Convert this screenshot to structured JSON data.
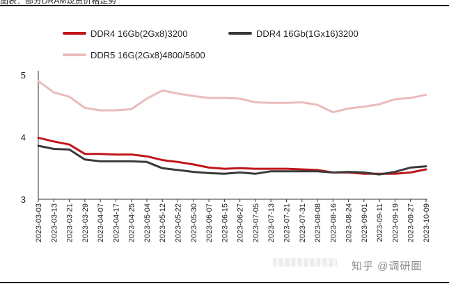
{
  "header": {
    "caption_fragment": "图表：部分DRAM现货价格走势"
  },
  "watermark": "知乎 @调研圈",
  "chart_data": {
    "type": "line",
    "title": "",
    "xlabel": "",
    "ylabel": "",
    "ylim": [
      3,
      5
    ],
    "yticks": [
      3,
      4,
      5
    ],
    "grid": false,
    "legend_position": "top",
    "x_tick_labels": [
      "2023-03-03",
      "2023-03-13",
      "2023-03-21",
      "2023-03-29",
      "2023-04-07",
      "2023-04-17",
      "2023-04-25",
      "2023-05-04",
      "2023-05-12",
      "2023-05-22",
      "2023-05-30",
      "2023-06-07",
      "2023-06-15",
      "2023-06-27",
      "2023-07-05",
      "2023-07-13",
      "2023-07-21",
      "2023-07-31",
      "2023-08-08",
      "2023-08-16",
      "2023-08-24",
      "2023-09-01",
      "2023-09-11",
      "2023-09-19",
      "2023-09-27",
      "2023-10-09"
    ],
    "series": [
      {
        "name": "DDR4 16Gb(2Gx8)3200",
        "color": "#c0161b",
        "values": [
          3.99,
          3.93,
          3.88,
          3.73,
          3.73,
          3.72,
          3.72,
          3.69,
          3.63,
          3.6,
          3.56,
          3.51,
          3.49,
          3.5,
          3.49,
          3.49,
          3.49,
          3.48,
          3.47,
          3.43,
          3.43,
          3.41,
          3.41,
          3.41,
          3.43,
          3.48
        ]
      },
      {
        "name": "DDR4 16Gb(1Gx16)3200",
        "color": "#3a3a3a",
        "values": [
          3.86,
          3.81,
          3.8,
          3.64,
          3.61,
          3.61,
          3.61,
          3.6,
          3.5,
          3.47,
          3.44,
          3.42,
          3.41,
          3.43,
          3.41,
          3.45,
          3.45,
          3.45,
          3.45,
          3.43,
          3.44,
          3.43,
          3.4,
          3.44,
          3.51,
          3.53
        ]
      },
      {
        "name": "DDR5 16G(2Gx8)4800/5600",
        "color": "#ebbcbc",
        "values": [
          4.9,
          4.72,
          4.65,
          4.47,
          4.43,
          4.43,
          4.45,
          4.62,
          4.75,
          4.7,
          4.66,
          4.63,
          4.63,
          4.62,
          4.56,
          4.55,
          4.55,
          4.56,
          4.52,
          4.4,
          4.46,
          4.49,
          4.53,
          4.61,
          4.63,
          4.68
        ]
      }
    ]
  }
}
